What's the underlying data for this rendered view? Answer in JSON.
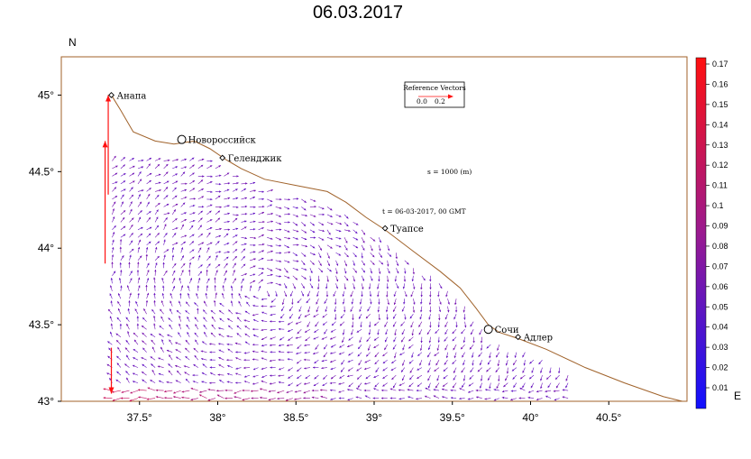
{
  "title": "06.03.2017",
  "compass": {
    "north": "N",
    "east": "E"
  },
  "colors": {
    "coast": "#a0622a",
    "low": "#1010ff",
    "high": "#ff1010"
  },
  "x_ticks": [
    {
      "lon": 37.5,
      "label": "37.5°"
    },
    {
      "lon": 38.0,
      "label": "38°"
    },
    {
      "lon": 38.5,
      "label": "38.5°"
    },
    {
      "lon": 39.0,
      "label": "39°"
    },
    {
      "lon": 39.5,
      "label": "39.5°"
    },
    {
      "lon": 40.0,
      "label": "40°"
    },
    {
      "lon": 40.5,
      "label": "40.5°"
    }
  ],
  "y_ticks": [
    {
      "lat": 45.0,
      "label": "45°"
    },
    {
      "lat": 44.5,
      "label": "44.5°"
    },
    {
      "lat": 44.0,
      "label": "44°"
    },
    {
      "lat": 43.5,
      "label": "43.5°"
    },
    {
      "lat": 43.0,
      "label": "43°"
    }
  ],
  "extent": {
    "lon": [
      37.0,
      41.0
    ],
    "lat": [
      43.0,
      45.25
    ]
  },
  "cities": [
    {
      "name": "Анапа",
      "lon": 37.32,
      "lat": 45.0,
      "marker": "diamond"
    },
    {
      "name": "Новороссийск",
      "lon": 37.77,
      "lat": 44.71,
      "marker": "circle"
    },
    {
      "name": "Геленджик",
      "lon": 38.03,
      "lat": 44.59,
      "marker": "diamond"
    },
    {
      "name": "Туапсе",
      "lon": 39.07,
      "lat": 44.13,
      "marker": "diamond"
    },
    {
      "name": "Сочи",
      "lon": 39.73,
      "lat": 43.47,
      "marker": "circle"
    },
    {
      "name": "Адлер",
      "lon": 39.92,
      "lat": 43.42,
      "marker": "diamond"
    }
  ],
  "reference_vector": {
    "title": "Reference Vectors",
    "min": "0.0",
    "max": "0.2"
  },
  "annotations": {
    "scale": "s = 1000 (m)",
    "time": "t = 06-03-2017, 00 GMT"
  },
  "colorbar": {
    "labels": [
      "0.17",
      "0.16",
      "0.15",
      "0.14",
      "0.13",
      "0.12",
      "0.11",
      "0.1",
      "0.09",
      "0.08",
      "0.07",
      "0.06",
      "0.05",
      "0.04",
      "0.03",
      "0.02",
      "0.01"
    ]
  },
  "chart_data": {
    "type": "vector-field",
    "title": "06.03.2017",
    "x_axis": "longitude",
    "y_axis": "latitude",
    "xlim": [
      37.0,
      41.0
    ],
    "ylim": [
      43.0,
      45.25
    ],
    "color_range": [
      0.0,
      0.17
    ],
    "coastline": [
      [
        37.32,
        45.0
      ],
      [
        37.38,
        44.9
      ],
      [
        37.46,
        44.76
      ],
      [
        37.6,
        44.7
      ],
      [
        37.72,
        44.68
      ],
      [
        37.85,
        44.7
      ],
      [
        37.95,
        44.65
      ],
      [
        38.05,
        44.58
      ],
      [
        38.15,
        44.52
      ],
      [
        38.3,
        44.45
      ],
      [
        38.5,
        44.41
      ],
      [
        38.7,
        44.37
      ],
      [
        38.82,
        44.3
      ],
      [
        38.95,
        44.2
      ],
      [
        39.07,
        44.12
      ],
      [
        39.25,
        43.98
      ],
      [
        39.42,
        43.85
      ],
      [
        39.55,
        43.74
      ],
      [
        39.65,
        43.61
      ],
      [
        39.73,
        43.5
      ],
      [
        39.8,
        43.45
      ],
      [
        39.92,
        43.41
      ],
      [
        40.1,
        43.34
      ],
      [
        40.35,
        43.22
      ],
      [
        40.6,
        43.12
      ],
      [
        40.85,
        43.03
      ],
      [
        40.97,
        43.0
      ]
    ]
  }
}
